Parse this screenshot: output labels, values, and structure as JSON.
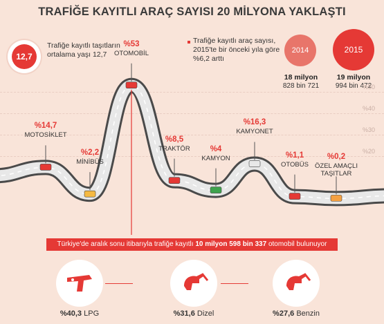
{
  "title": "TRAFİĞE KAYITLI ARAÇ SAYISI 20 MİLYONA YAKLAŞTI",
  "average": {
    "badge": "12,7",
    "text": "Trafiğe kayıtlı taşıtların ortalama yaşı 12,7"
  },
  "growth_note": "Trafiğe kayıtlı araç sayısı, 2015'te bir önceki yıla göre %6,2 arttı",
  "years": [
    {
      "year": "2014",
      "main": "18 milyon",
      "sub": "828 bin 721"
    },
    {
      "year": "2015",
      "main": "19 milyon",
      "sub": "994 bin 472"
    }
  ],
  "colors": {
    "accent": "#e53935",
    "accent_light": "#e8756a",
    "background": "#f9e4d9",
    "road": "#e8e8e8"
  },
  "banner": {
    "prefix": "Türkiye'de aralık sonu itibarıyla trafiğe kayıtlı",
    "highlight": "10 milyon 598 bin 337",
    "suffix": "otomobil bulunuyor"
  },
  "fuel": [
    {
      "pct": "%40,3",
      "label": "LPG",
      "icon": "lpg-gun-icon"
    },
    {
      "pct": "%31,6",
      "label": "Dizel",
      "icon": "diesel-nozzle-icon"
    },
    {
      "pct": "%27,6",
      "label": "Benzin",
      "icon": "gasoline-nozzle-icon"
    }
  ],
  "chart_data": {
    "type": "line",
    "title": "TRAFİĞE KAYITLI ARAÇ SAYISI 20 MİLYONA YAKLAŞTI",
    "yticks": [
      "%20",
      "%30",
      "%40",
      "%50"
    ],
    "ylim": [
      0,
      55
    ],
    "categories": [
      "MOTOSİKLET",
      "MİNİBÜS",
      "OTOMOBİL",
      "TRAKTÖR",
      "KAMYON",
      "KAMYONET",
      "OTOBÜS",
      "ÖZEL AMAÇLI TAŞITLAR"
    ],
    "labels": [
      "%14,7",
      "%2,2",
      "%53",
      "%8,5",
      "%4",
      "%16,3",
      "%1,1",
      "%0,2"
    ],
    "values": [
      14.7,
      2.2,
      53,
      8.5,
      4,
      16.3,
      1.1,
      0.2
    ]
  }
}
